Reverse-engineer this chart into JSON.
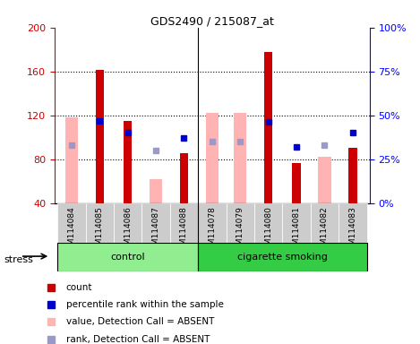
{
  "title": "GDS2490 / 215087_at",
  "samples": [
    "GSM114084",
    "GSM114085",
    "GSM114086",
    "GSM114087",
    "GSM114088",
    "GSM114078",
    "GSM114079",
    "GSM114080",
    "GSM114081",
    "GSM114082",
    "GSM114083"
  ],
  "groups": [
    {
      "name": "control",
      "color": "#90ee90",
      "samples_idx": [
        0,
        1,
        2,
        3,
        4
      ]
    },
    {
      "name": "cigarette smoking",
      "color": "#33cc44",
      "samples_idx": [
        5,
        6,
        7,
        8,
        9,
        10
      ]
    }
  ],
  "red_bars": [
    null,
    161,
    115,
    null,
    85,
    null,
    null,
    178,
    76,
    null,
    90
  ],
  "pink_bars": [
    118,
    null,
    null,
    62,
    null,
    122,
    122,
    null,
    null,
    82,
    null
  ],
  "blue_squares_pct": [
    null,
    47,
    40,
    null,
    37,
    null,
    null,
    46,
    32,
    null,
    40
  ],
  "light_blue_squares_pct": [
    33,
    null,
    null,
    30,
    null,
    35,
    35,
    null,
    null,
    33,
    null
  ],
  "ylim_left": [
    40,
    200
  ],
  "ylim_right": [
    0,
    100
  ],
  "yticks_left": [
    40,
    80,
    120,
    160,
    200
  ],
  "yticks_right": [
    0,
    25,
    50,
    75,
    100
  ],
  "ytick_labels_right": [
    "0%",
    "25%",
    "50%",
    "75%",
    "100%"
  ],
  "red_bar_width": 0.3,
  "pink_bar_width": 0.45,
  "left_color": "#cc0000",
  "pink_color": "#ffb3b3",
  "blue_color": "#0000cc",
  "light_blue_color": "#9999cc",
  "stress_label": "stress",
  "grid_color": "black",
  "tick_bg_color": "#cccccc"
}
